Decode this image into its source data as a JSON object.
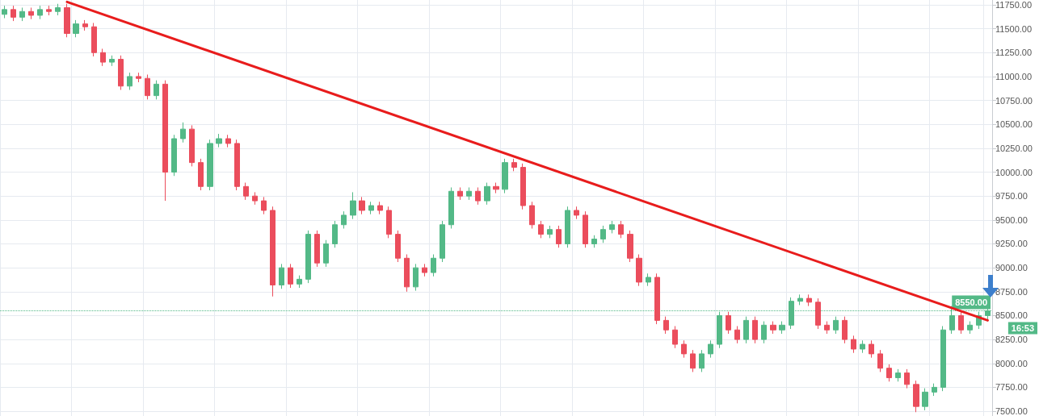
{
  "chart_data": {
    "type": "candlestick",
    "grid": true,
    "tick_labels": "y",
    "marker": "none",
    "categories": [
      null,
      null,
      null,
      null,
      null,
      null,
      null,
      null,
      null,
      null,
      null,
      null,
      null,
      null,
      null,
      null,
      null,
      null,
      null,
      null,
      null,
      null,
      null,
      null,
      null,
      null,
      null,
      null,
      null,
      null,
      null,
      null,
      null,
      null,
      null,
      null,
      null,
      null,
      null,
      null,
      null,
      null,
      null,
      null,
      null,
      null,
      null,
      null,
      null,
      null,
      null,
      null,
      null,
      null,
      null,
      null,
      null,
      null,
      null,
      null,
      null,
      null,
      null,
      null,
      null,
      null,
      null,
      null,
      null,
      null,
      null,
      null,
      null,
      null,
      null,
      null,
      null,
      null,
      null,
      null,
      null,
      null,
      null,
      null,
      null,
      null,
      null,
      null,
      null,
      null,
      null,
      null,
      null,
      null,
      null,
      null,
      null,
      null,
      null,
      null,
      null,
      null,
      null,
      null,
      null,
      null,
      null,
      null,
      null,
      null,
      null
    ],
    "ohlc": [
      [
        11650,
        11740,
        11610,
        11700
      ],
      [
        11700,
        11740,
        11580,
        11620
      ],
      [
        11620,
        11720,
        11580,
        11680
      ],
      [
        11680,
        11720,
        11600,
        11640
      ],
      [
        11640,
        11740,
        11600,
        11700
      ],
      [
        11700,
        11740,
        11640,
        11680
      ],
      [
        11680,
        11760,
        11640,
        11720
      ],
      [
        11720,
        11760,
        11410,
        11450
      ],
      [
        11450,
        11590,
        11410,
        11550
      ],
      [
        11550,
        11590,
        11480,
        11520
      ],
      [
        11520,
        11560,
        11210,
        11250
      ],
      [
        11250,
        11290,
        11110,
        11150
      ],
      [
        11150,
        11220,
        11110,
        11180
      ],
      [
        11180,
        11220,
        10860,
        10900
      ],
      [
        10900,
        11040,
        10860,
        11000
      ],
      [
        11000,
        11040,
        10940,
        10980
      ],
      [
        10980,
        11020,
        10760,
        10800
      ],
      [
        10800,
        10960,
        10760,
        10920
      ],
      [
        10920,
        10960,
        9700,
        10000
      ],
      [
        10000,
        10390,
        9960,
        10350
      ],
      [
        10350,
        10520,
        10310,
        10450
      ],
      [
        10450,
        10490,
        10060,
        10100
      ],
      [
        10100,
        10140,
        9810,
        9850
      ],
      [
        9850,
        10340,
        9810,
        10300
      ],
      [
        10300,
        10400,
        10260,
        10350
      ],
      [
        10350,
        10390,
        10260,
        10300
      ],
      [
        10300,
        10340,
        9810,
        9850
      ],
      [
        9850,
        9890,
        9710,
        9750
      ],
      [
        9750,
        9790,
        9660,
        9700
      ],
      [
        9700,
        9740,
        9560,
        9600
      ],
      [
        9600,
        9640,
        8700,
        8820
      ],
      [
        8820,
        9040,
        8780,
        9000
      ],
      [
        9000,
        9040,
        8790,
        8830
      ],
      [
        8830,
        8920,
        8790,
        8880
      ],
      [
        8880,
        9390,
        8840,
        9350
      ],
      [
        9350,
        9390,
        9010,
        9050
      ],
      [
        9050,
        9290,
        9010,
        9250
      ],
      [
        9250,
        9490,
        9210,
        9450
      ],
      [
        9450,
        9590,
        9410,
        9550
      ],
      [
        9550,
        9790,
        9510,
        9700
      ],
      [
        9700,
        9740,
        9560,
        9600
      ],
      [
        9600,
        9690,
        9560,
        9650
      ],
      [
        9650,
        9690,
        9560,
        9600
      ],
      [
        9600,
        9640,
        9310,
        9350
      ],
      [
        9350,
        9390,
        9060,
        9100
      ],
      [
        9100,
        9140,
        8750,
        8800
      ],
      [
        8800,
        9040,
        8760,
        9000
      ],
      [
        9000,
        9040,
        8910,
        8950
      ],
      [
        8950,
        9140,
        8910,
        9100
      ],
      [
        9100,
        9490,
        9060,
        9450
      ],
      [
        9450,
        9840,
        9410,
        9800
      ],
      [
        9800,
        9840,
        9710,
        9750
      ],
      [
        9750,
        9840,
        9710,
        9800
      ],
      [
        9800,
        9840,
        9660,
        9700
      ],
      [
        9700,
        9890,
        9660,
        9850
      ],
      [
        9850,
        9890,
        9780,
        9820
      ],
      [
        9820,
        10140,
        9780,
        10100
      ],
      [
        10100,
        10140,
        10010,
        10050
      ],
      [
        10050,
        10090,
        9610,
        9650
      ],
      [
        9650,
        9690,
        9410,
        9450
      ],
      [
        9450,
        9490,
        9310,
        9350
      ],
      [
        9350,
        9440,
        9310,
        9400
      ],
      [
        9400,
        9440,
        9210,
        9250
      ],
      [
        9250,
        9640,
        9210,
        9600
      ],
      [
        9600,
        9640,
        9510,
        9550
      ],
      [
        9550,
        9590,
        9210,
        9250
      ],
      [
        9250,
        9340,
        9210,
        9300
      ],
      [
        9300,
        9440,
        9260,
        9400
      ],
      [
        9400,
        9490,
        9360,
        9450
      ],
      [
        9450,
        9490,
        9310,
        9350
      ],
      [
        9350,
        9390,
        9060,
        9100
      ],
      [
        9100,
        9140,
        8810,
        8850
      ],
      [
        8850,
        8940,
        8810,
        8900
      ],
      [
        8900,
        8940,
        8410,
        8450
      ],
      [
        8450,
        8490,
        8310,
        8350
      ],
      [
        8350,
        8390,
        8160,
        8200
      ],
      [
        8200,
        8240,
        8060,
        8100
      ],
      [
        8100,
        8140,
        7910,
        7950
      ],
      [
        7950,
        8140,
        7910,
        8100
      ],
      [
        8100,
        8240,
        8060,
        8200
      ],
      [
        8200,
        8540,
        8160,
        8500
      ],
      [
        8500,
        8540,
        8310,
        8350
      ],
      [
        8350,
        8390,
        8210,
        8250
      ],
      [
        8250,
        8490,
        8210,
        8450
      ],
      [
        8450,
        8490,
        8210,
        8250
      ],
      [
        8250,
        8440,
        8210,
        8400
      ],
      [
        8400,
        8440,
        8310,
        8350
      ],
      [
        8350,
        8440,
        8310,
        8400
      ],
      [
        8400,
        8690,
        8360,
        8650
      ],
      [
        8650,
        8720,
        8610,
        8680
      ],
      [
        8680,
        8720,
        8600,
        8640
      ],
      [
        8640,
        8680,
        8360,
        8400
      ],
      [
        8400,
        8440,
        8310,
        8350
      ],
      [
        8350,
        8490,
        8310,
        8450
      ],
      [
        8450,
        8490,
        8210,
        8250
      ],
      [
        8250,
        8290,
        8110,
        8150
      ],
      [
        8150,
        8240,
        8110,
        8200
      ],
      [
        8200,
        8240,
        8060,
        8100
      ],
      [
        8100,
        8140,
        7910,
        7950
      ],
      [
        7950,
        7990,
        7810,
        7850
      ],
      [
        7850,
        7940,
        7810,
        7900
      ],
      [
        7900,
        7940,
        7740,
        7780
      ],
      [
        7780,
        7820,
        7490,
        7550
      ],
      [
        7550,
        7740,
        7510,
        7700
      ],
      [
        7700,
        7790,
        7660,
        7750
      ],
      [
        7750,
        8390,
        7710,
        8350
      ],
      [
        8350,
        8600,
        8310,
        8500
      ],
      [
        8500,
        8540,
        8310,
        8350
      ],
      [
        8350,
        8440,
        8310,
        8400
      ],
      [
        8400,
        8540,
        8360,
        8500
      ],
      [
        8500,
        8590,
        8460,
        8550
      ]
    ],
    "colors": [
      "#53b987",
      "#eb4d5c",
      "#53b987",
      "#eb4d5c",
      "#53b987",
      "#eb4d5c",
      "#53b987",
      "#eb4d5c",
      "#53b987",
      "#eb4d5c",
      "#eb4d5c",
      "#eb4d5c",
      "#53b987",
      "#eb4d5c",
      "#53b987",
      "#eb4d5c",
      "#eb4d5c",
      "#53b987",
      "#eb4d5c",
      "#53b987",
      "#53b987",
      "#eb4d5c",
      "#eb4d5c",
      "#53b987",
      "#53b987",
      "#eb4d5c",
      "#eb4d5c",
      "#eb4d5c",
      "#eb4d5c",
      "#eb4d5c",
      "#eb4d5c",
      "#53b987",
      "#eb4d5c",
      "#53b987",
      "#53b987",
      "#eb4d5c",
      "#53b987",
      "#53b987",
      "#53b987",
      "#53b987",
      "#eb4d5c",
      "#53b987",
      "#eb4d5c",
      "#eb4d5c",
      "#eb4d5c",
      "#eb4d5c",
      "#53b987",
      "#eb4d5c",
      "#53b987",
      "#53b987",
      "#53b987",
      "#eb4d5c",
      "#53b987",
      "#eb4d5c",
      "#53b987",
      "#eb4d5c",
      "#53b987",
      "#eb4d5c",
      "#eb4d5c",
      "#eb4d5c",
      "#eb4d5c",
      "#53b987",
      "#eb4d5c",
      "#53b987",
      "#eb4d5c",
      "#eb4d5c",
      "#53b987",
      "#53b987",
      "#53b987",
      "#eb4d5c",
      "#eb4d5c",
      "#eb4d5c",
      "#53b987",
      "#eb4d5c",
      "#eb4d5c",
      "#eb4d5c",
      "#eb4d5c",
      "#eb4d5c",
      "#53b987",
      "#53b987",
      "#53b987",
      "#eb4d5c",
      "#eb4d5c",
      "#53b987",
      "#eb4d5c",
      "#53b987",
      "#eb4d5c",
      "#53b987",
      "#53b987",
      "#53b987",
      "#eb4d5c",
      "#eb4d5c",
      "#eb4d5c",
      "#53b987",
      "#eb4d5c",
      "#eb4d5c",
      "#53b987",
      "#eb4d5c",
      "#eb4d5c",
      "#eb4d5c",
      "#53b987",
      "#eb4d5c",
      "#eb4d5c",
      "#53b987",
      "#53b987",
      "#53b987",
      "#53b987",
      "#eb4d5c",
      "#53b987",
      "#53b987",
      "#53b987"
    ],
    "series": [
      {
        "type": "line",
        "color": "#e81c1c",
        "values": [
          null,
          null,
          null,
          null,
          null,
          null,
          null,
          11780,
          null,
          null,
          null,
          null,
          null,
          null,
          null,
          null,
          null,
          null,
          null,
          null,
          null,
          null,
          null,
          null,
          null,
          null,
          null,
          null,
          null,
          null,
          null,
          null,
          null,
          null,
          null,
          null,
          null,
          null,
          null,
          null,
          null,
          null,
          null,
          null,
          null,
          null,
          null,
          null,
          null,
          null,
          null,
          null,
          null,
          null,
          null,
          null,
          null,
          null,
          null,
          null,
          null,
          null,
          null,
          null,
          null,
          null,
          null,
          null,
          null,
          null,
          null,
          null,
          null,
          null,
          null,
          null,
          null,
          null,
          null,
          null,
          null,
          null,
          null,
          null,
          null,
          null,
          null,
          null,
          null,
          null,
          null,
          null,
          null,
          null,
          null,
          null,
          null,
          null,
          null,
          null,
          null,
          null,
          null,
          null,
          null,
          null,
          null,
          null,
          null,
          null,
          8450
        ]
      }
    ],
    "ylim": [
      7450,
      11800
    ],
    "yticks": [
      {
        "value": 7500,
        "label": "7500.00"
      },
      {
        "value": 7750,
        "label": "7750.00"
      },
      {
        "value": 8000,
        "label": "8000.00"
      },
      {
        "value": 8250,
        "label": "8250.00"
      },
      {
        "value": 8500,
        "label": "8500.00"
      },
      {
        "value": 8750,
        "label": "8750.00"
      },
      {
        "value": 9000,
        "label": "9000.00"
      },
      {
        "value": 9250,
        "label": "9250.00"
      },
      {
        "value": 9500,
        "label": "9500.00"
      },
      {
        "value": 9750,
        "label": "9750.00"
      },
      {
        "value": 10000,
        "label": "10000.00"
      },
      {
        "value": 10250,
        "label": "10250.00"
      },
      {
        "value": 10500,
        "label": "10500.00"
      },
      {
        "value": 10750,
        "label": "10750.00"
      },
      {
        "value": 11000,
        "label": "11000.00"
      },
      {
        "value": 11250,
        "label": "11250.00"
      },
      {
        "value": 11500,
        "label": "11500.00"
      },
      {
        "value": 11750,
        "label": "11750.00"
      }
    ],
    "ref_lines": [
      {
        "axis": "y",
        "value": 8550,
        "label": "8550.00",
        "color": "#53b987",
        "line_style": "dotted"
      }
    ],
    "annotations": [
      "16:53"
    ]
  }
}
